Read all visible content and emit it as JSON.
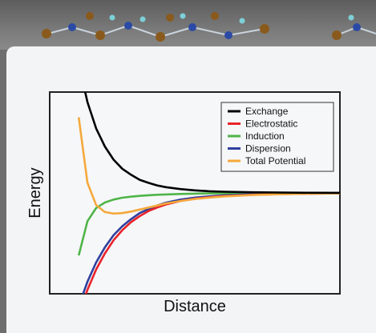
{
  "chart_data": {
    "type": "line",
    "title": "",
    "xlabel": "Distance",
    "ylabel": "Energy",
    "x": [
      0.1,
      0.13,
      0.16,
      0.19,
      0.22,
      0.25,
      0.28,
      0.31,
      0.34,
      0.37,
      0.4,
      0.45,
      0.5,
      0.55,
      0.6,
      0.7,
      0.8,
      0.9,
      1.0
    ],
    "xlim": [
      0,
      1
    ],
    "ylim": [
      -1,
      1
    ],
    "grid": false,
    "legend_position": "top-right",
    "series": [
      {
        "name": "Exchange",
        "color": "#000000",
        "values": [
          1.28,
          0.9,
          0.64,
          0.46,
          0.33,
          0.24,
          0.18,
          0.13,
          0.1,
          0.075,
          0.057,
          0.038,
          0.025,
          0.017,
          0.012,
          0.006,
          0.003,
          0.0015,
          0.0005
        ]
      },
      {
        "name": "Electrostatic",
        "color": "#e8232a",
        "values": [
          -1.2,
          -0.96,
          -0.76,
          -0.6,
          -0.47,
          -0.37,
          -0.29,
          -0.23,
          -0.18,
          -0.145,
          -0.115,
          -0.08,
          -0.058,
          -0.042,
          -0.031,
          -0.018,
          -0.011,
          -0.007,
          -0.004
        ]
      },
      {
        "name": "Induction",
        "color": "#4fb548",
        "values": [
          -0.62,
          -0.28,
          -0.15,
          -0.095,
          -0.066,
          -0.048,
          -0.037,
          -0.029,
          -0.023,
          -0.018,
          -0.015,
          -0.01,
          -0.007,
          -0.005,
          -0.003,
          -0.0015,
          -0.0008,
          -0.0004,
          -0.0002
        ]
      },
      {
        "name": "Dispersion",
        "color": "#2e3f9e",
        "values": [
          -1.12,
          -0.88,
          -0.69,
          -0.54,
          -0.42,
          -0.33,
          -0.26,
          -0.2,
          -0.16,
          -0.125,
          -0.098,
          -0.067,
          -0.047,
          -0.034,
          -0.025,
          -0.013,
          -0.007,
          -0.004,
          -0.002
        ]
      },
      {
        "name": "Total Potential",
        "color": "#f5a93c",
        "values": [
          0.75,
          0.1,
          -0.12,
          -0.19,
          -0.205,
          -0.2,
          -0.185,
          -0.165,
          -0.145,
          -0.125,
          -0.105,
          -0.08,
          -0.06,
          -0.046,
          -0.035,
          -0.021,
          -0.013,
          -0.008,
          -0.005
        ]
      }
    ]
  }
}
